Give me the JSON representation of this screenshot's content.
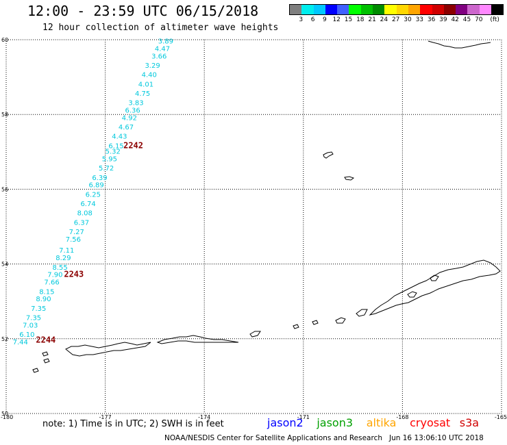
{
  "title": "12:00 - 23:59 UTC 06/15/2018",
  "subtitle": "12 hour collection of altimeter wave heights",
  "legend": {
    "colors": [
      "#7f7f7f",
      "#00eeee",
      "#00c8ff",
      "#0000ff",
      "#4060ff",
      "#00ff00",
      "#00c000",
      "#008b00",
      "#ffff00",
      "#ffd700",
      "#ffa500",
      "#ff0000",
      "#d00000",
      "#8b0000",
      "#800080",
      "#cc66cc",
      "#ff88ff",
      "#000000"
    ],
    "labels": [
      "3",
      "6",
      "9",
      "12",
      "15",
      "18",
      "21",
      "24",
      "27",
      "30",
      "33",
      "36",
      "39",
      "42",
      "45",
      "70",
      "(ft)"
    ]
  },
  "map": {
    "lon_range": [
      -180,
      -165
    ],
    "lat_range": [
      50,
      60
    ],
    "lat_ticks": [
      "60",
      "58",
      "56",
      "54",
      "52",
      "50"
    ],
    "lon_ticks": [
      "-180",
      "-177",
      "-174",
      "-171",
      "-168",
      "-165"
    ],
    "track_color": "#00c8dc",
    "time_color": "#8b0000",
    "wave_labels": [
      {
        "text": "3.89",
        "lon": -175.4,
        "lat": 59.9
      },
      {
        "text": "4.47",
        "lon": -175.5,
        "lat": 59.7
      },
      {
        "text": "3.66",
        "lon": -175.6,
        "lat": 59.5
      },
      {
        "text": "3.29",
        "lon": -175.8,
        "lat": 59.25
      },
      {
        "text": "4.40",
        "lon": -175.9,
        "lat": 59.0
      },
      {
        "text": "4.01",
        "lon": -176.0,
        "lat": 58.75
      },
      {
        "text": "4.75",
        "lon": -176.1,
        "lat": 58.5
      },
      {
        "text": "3.83",
        "lon": -176.3,
        "lat": 58.25
      },
      {
        "text": "6.36",
        "lon": -176.4,
        "lat": 58.05
      },
      {
        "text": "4.92",
        "lon": -176.5,
        "lat": 57.85
      },
      {
        "text": "4.67",
        "lon": -176.6,
        "lat": 57.6
      },
      {
        "text": "4.43",
        "lon": -176.8,
        "lat": 57.35
      },
      {
        "text": "6.15",
        "lon": -176.9,
        "lat": 57.1
      },
      {
        "text": "5.32",
        "lon": -177.0,
        "lat": 56.95
      },
      {
        "text": "5.95",
        "lon": -177.1,
        "lat": 56.75
      },
      {
        "text": "5.72",
        "lon": -177.2,
        "lat": 56.5
      },
      {
        "text": "6.39",
        "lon": -177.4,
        "lat": 56.25
      },
      {
        "text": "6.89",
        "lon": -177.5,
        "lat": 56.05
      },
      {
        "text": "6.25",
        "lon": -177.6,
        "lat": 55.8
      },
      {
        "text": "6.74",
        "lon": -177.75,
        "lat": 55.55
      },
      {
        "text": "8.08",
        "lon": -177.85,
        "lat": 55.3
      },
      {
        "text": "6.37",
        "lon": -177.95,
        "lat": 55.05
      },
      {
        "text": "7.27",
        "lon": -178.1,
        "lat": 54.8
      },
      {
        "text": "7.56",
        "lon": -178.2,
        "lat": 54.6
      },
      {
        "text": "7.11",
        "lon": -178.4,
        "lat": 54.3
      },
      {
        "text": "8.29",
        "lon": -178.5,
        "lat": 54.1
      },
      {
        "text": "8.55",
        "lon": -178.6,
        "lat": 53.85
      },
      {
        "text": "7.90",
        "lon": -178.75,
        "lat": 53.65
      },
      {
        "text": "7.66",
        "lon": -178.85,
        "lat": 53.45
      },
      {
        "text": "8.15",
        "lon": -179.0,
        "lat": 53.2
      },
      {
        "text": "8.90",
        "lon": -179.1,
        "lat": 53.0
      },
      {
        "text": "7.35",
        "lon": -179.25,
        "lat": 52.75
      },
      {
        "text": "7.35",
        "lon": -179.4,
        "lat": 52.5
      },
      {
        "text": "7.03",
        "lon": -179.5,
        "lat": 52.3
      },
      {
        "text": "6.10",
        "lon": -179.6,
        "lat": 52.05
      },
      {
        "text": "7.44",
        "lon": -179.8,
        "lat": 51.85
      }
    ],
    "time_labels": [
      {
        "text": "2242",
        "lon": -176.45,
        "lat": 57.1
      },
      {
        "text": "2243",
        "lon": -178.25,
        "lat": 53.65
      },
      {
        "text": "2244",
        "lon": -179.1,
        "lat": 51.9
      }
    ]
  },
  "note": "note: 1) Time is in UTC; 2) SWH is in feet",
  "satellites": [
    {
      "name": "jason2",
      "color": "#0000ff"
    },
    {
      "name": "jason3",
      "color": "#00a000"
    },
    {
      "name": "altika",
      "color": "#ffa500"
    },
    {
      "name": "cryosat",
      "color": "#ff0000"
    },
    {
      "name": "s3a",
      "color": "#d00000"
    }
  ],
  "footer": "NOAA/NESDIS Center for Satellite Applications and Research   Jun 16 13:06:10 UTC 2018"
}
